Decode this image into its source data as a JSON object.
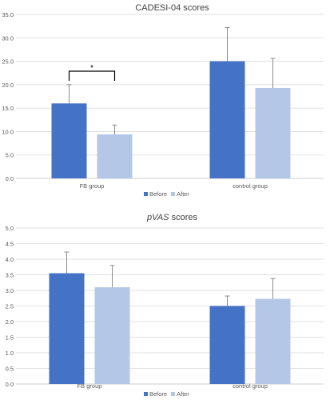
{
  "chart_data": [
    {
      "type": "bar",
      "title": "CADESI-04 scores",
      "title_italic_prefix": "",
      "title_rest": "CADESI-04 scores",
      "categories": [
        "FB group",
        "control group"
      ],
      "series": [
        {
          "name": "Before",
          "values": [
            16.0,
            25.0
          ],
          "errors": [
            4.0,
            7.2
          ]
        },
        {
          "name": "After",
          "values": [
            9.4,
            19.3
          ],
          "errors": [
            2.0,
            6.3
          ]
        }
      ],
      "ylim": [
        0,
        35
      ],
      "yticks": [
        "0.0",
        "5.0",
        "10.0",
        "15.0",
        "20.0",
        "25.0",
        "30.0",
        "35.0"
      ],
      "annotation": "*",
      "legend_position": "bottom",
      "colors": [
        "#4472C4",
        "#B4C7E7"
      ]
    },
    {
      "type": "bar",
      "title": "pVAS scores",
      "title_italic_prefix": "pVAS",
      "title_rest": " scores",
      "categories": [
        "FB group",
        "control group"
      ],
      "series": [
        {
          "name": "Before",
          "values": [
            3.55,
            2.5
          ],
          "errors": [
            0.68,
            0.32
          ]
        },
        {
          "name": "After",
          "values": [
            3.1,
            2.73
          ],
          "errors": [
            0.7,
            0.65
          ]
        }
      ],
      "ylim": [
        0,
        5
      ],
      "yticks": [
        "0.0",
        "0.5",
        "1.0",
        "1.5",
        "2.0",
        "2.5",
        "3.0",
        "3.5",
        "4.0",
        "4.5",
        "5.0"
      ],
      "annotation": "",
      "legend_position": "bottom",
      "colors": [
        "#4472C4",
        "#B4C7E7"
      ]
    }
  ]
}
